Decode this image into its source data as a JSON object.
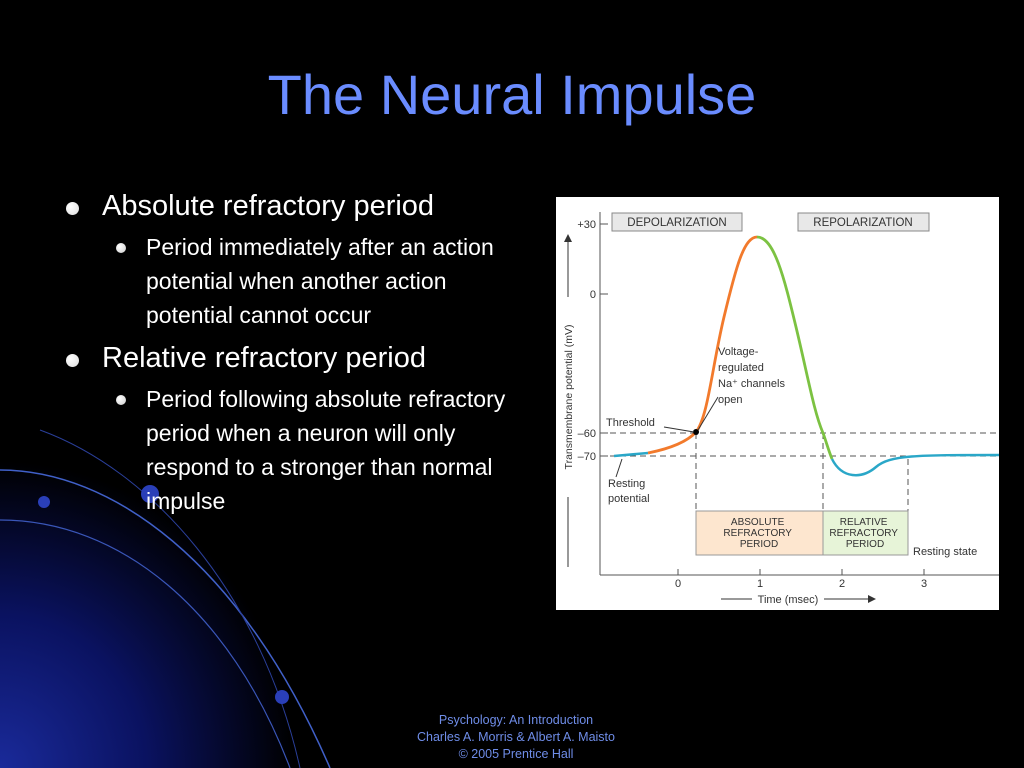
{
  "slide": {
    "title": "The Neural Impulse",
    "bullets": [
      {
        "text": "Absolute refractory period",
        "sub": "Period immediately after an action potential when another action potential cannot occur"
      },
      {
        "text": "Relative refractory period",
        "sub": "Period following absolute refractory period when a neuron will only respond to a stronger than normal impulse"
      }
    ],
    "footer": [
      "Psychology: An Introduction",
      "Charles A. Morris & Albert A. Maisto",
      "© 2005 Prentice Hall"
    ]
  },
  "figure": {
    "y_axis_label": "Transmembrane potential (mV)",
    "x_axis_label": "Time (msec)",
    "y_ticks": [
      "+30",
      "0",
      "–60",
      "–70"
    ],
    "x_ticks": [
      "0",
      "1",
      "2",
      "3"
    ],
    "phase_labels": {
      "depolarization": "DEPOLARIZATION",
      "repolarization": "REPOLARIZATION"
    },
    "annotations": {
      "threshold": "Threshold",
      "resting_potential": [
        "Resting",
        "potential"
      ],
      "voltage_regulated": [
        "Voltage-",
        "regulated",
        "Na⁺ channels",
        "open"
      ],
      "resting_state": "Resting state"
    },
    "periods": {
      "absolute": [
        "ABSOLUTE",
        "REFRACTORY",
        "PERIOD"
      ],
      "relative": [
        "RELATIVE",
        "REFRACTORY",
        "PERIOD"
      ]
    },
    "colors": {
      "resting": "#2aa7c8",
      "depolarization": "#f27a2c",
      "repolarization": "#7cc242",
      "undershoot": "#2aa7c8",
      "absolute_box": "#fde6cf",
      "relative_box": "#e7f4d8",
      "title": "#6a8cff"
    }
  }
}
